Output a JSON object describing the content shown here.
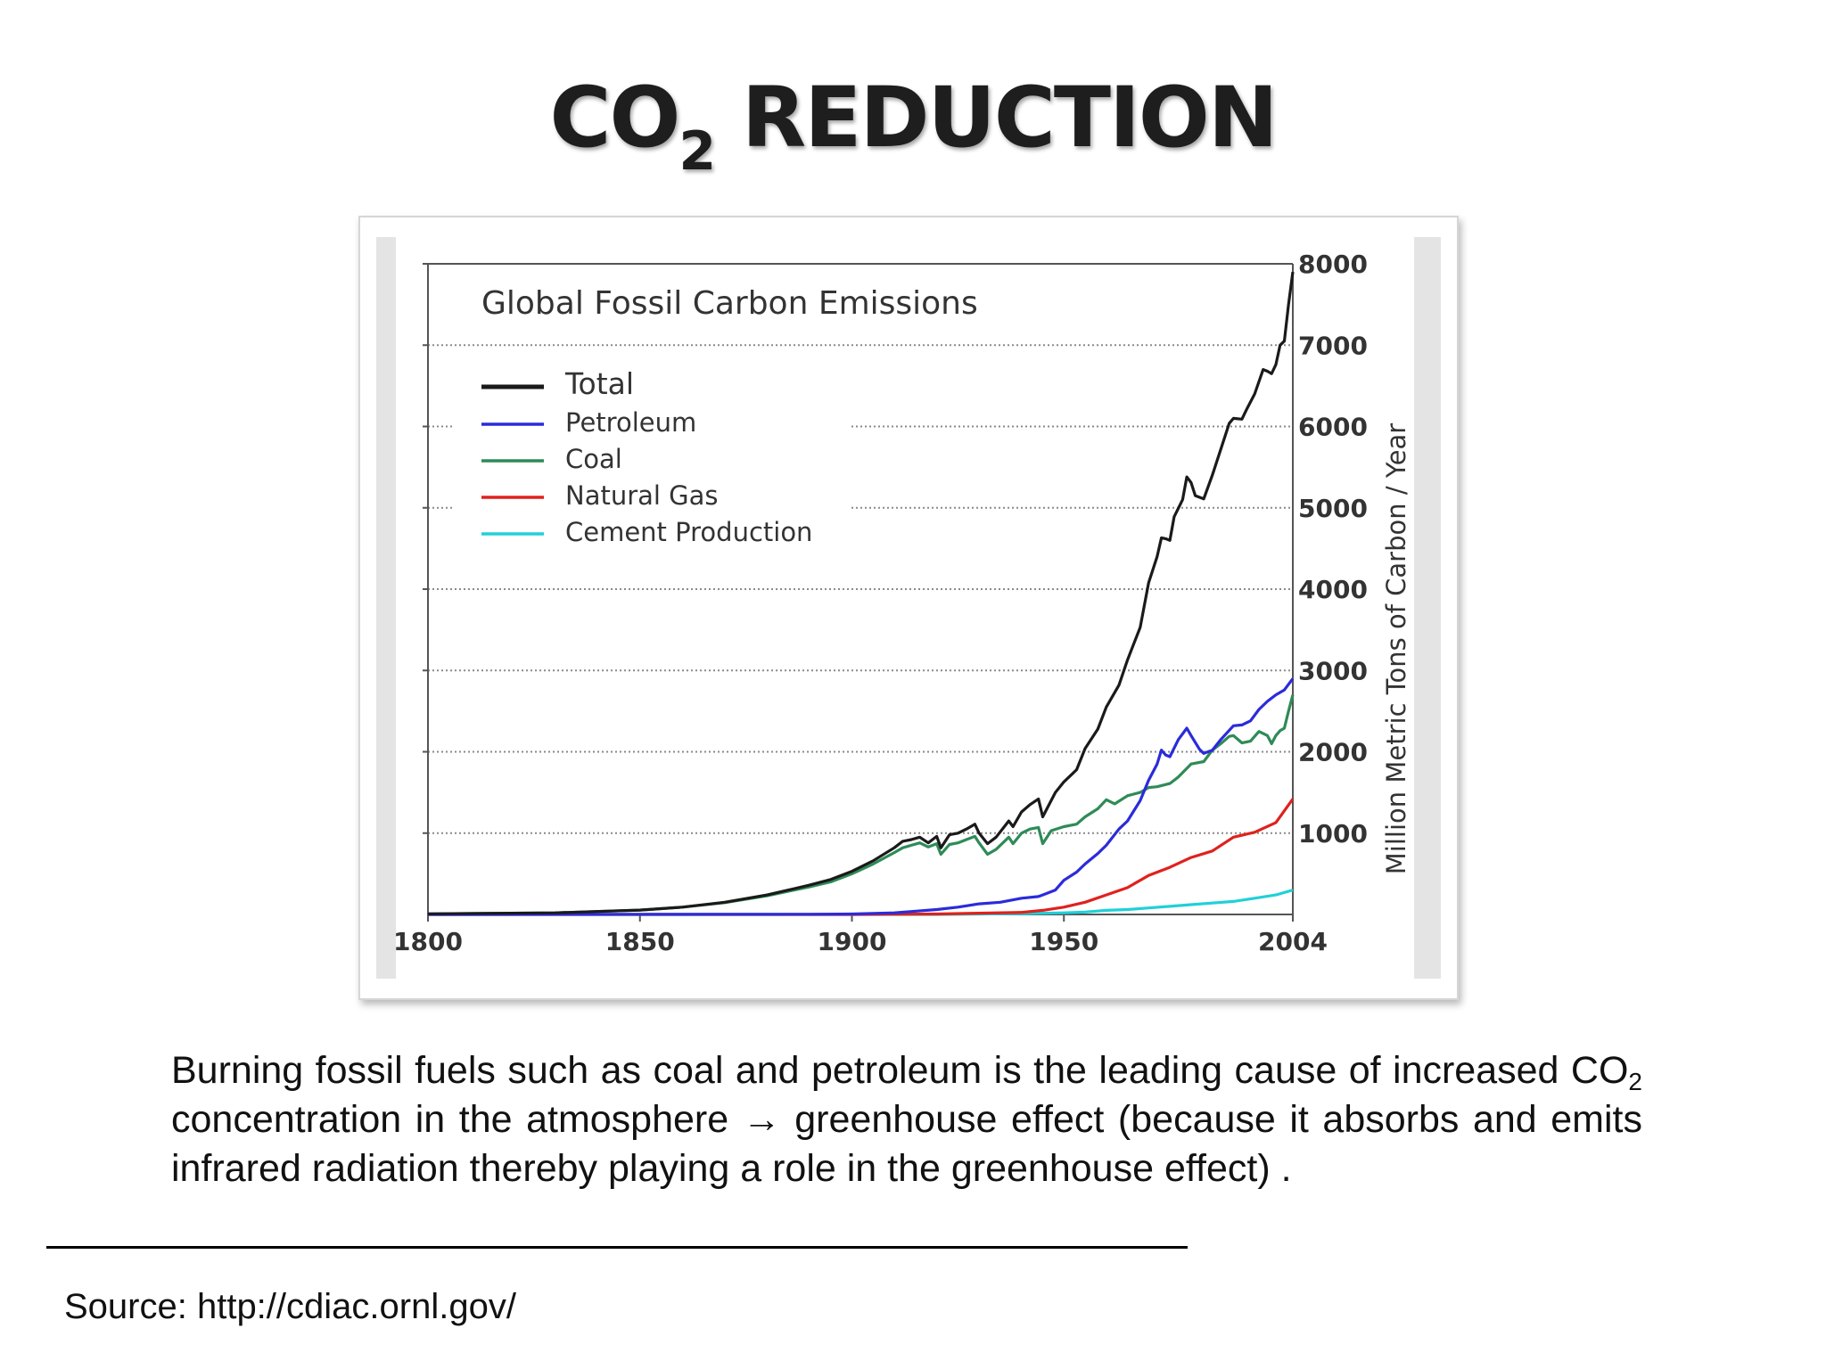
{
  "slide": {
    "title_main": "CO",
    "title_sub": "2",
    "title_rest": " REDUCTION",
    "caption_part1": "Burning fossil fuels such as coal and petroleum is the leading cause of increased CO",
    "caption_sub": "2",
    "caption_part2": " concentration in the atmosphere → greenhouse effect (because it absorbs and emits infrared radiation thereby playing a role in the greenhouse effect) .",
    "source": "Source: http://cdiac.ornl.gov/"
  },
  "chart_data": {
    "type": "line",
    "title": "Global Fossil Carbon Emissions",
    "ylabel": "Million Metric Tons of Carbon / Year",
    "xlabel": "",
    "xlim": [
      1800,
      2004
    ],
    "ylim": [
      0,
      8000
    ],
    "x_ticks": [
      1800,
      1850,
      1900,
      1950,
      2004
    ],
    "y_ticks": [
      1000,
      2000,
      3000,
      4000,
      5000,
      6000,
      7000,
      8000
    ],
    "y_axis_side": "right",
    "grid": "horizontal dotted",
    "legend_position": "top-left",
    "series": [
      {
        "name": "Total",
        "color": "#1a1a1a",
        "points": [
          [
            1800,
            8
          ],
          [
            1830,
            20
          ],
          [
            1850,
            54
          ],
          [
            1860,
            90
          ],
          [
            1870,
            150
          ],
          [
            1880,
            240
          ],
          [
            1890,
            360
          ],
          [
            1895,
            430
          ],
          [
            1900,
            530
          ],
          [
            1905,
            660
          ],
          [
            1910,
            820
          ],
          [
            1912,
            900
          ],
          [
            1914,
            920
          ],
          [
            1916,
            950
          ],
          [
            1918,
            880
          ],
          [
            1920,
            960
          ],
          [
            1921,
            820
          ],
          [
            1923,
            980
          ],
          [
            1925,
            1000
          ],
          [
            1927,
            1050
          ],
          [
            1929,
            1110
          ],
          [
            1930,
            1000
          ],
          [
            1932,
            870
          ],
          [
            1934,
            950
          ],
          [
            1937,
            1150
          ],
          [
            1938,
            1080
          ],
          [
            1940,
            1260
          ],
          [
            1942,
            1350
          ],
          [
            1944,
            1420
          ],
          [
            1945,
            1200
          ],
          [
            1946,
            1300
          ],
          [
            1948,
            1500
          ],
          [
            1950,
            1630
          ],
          [
            1953,
            1780
          ],
          [
            1955,
            2040
          ],
          [
            1958,
            2280
          ],
          [
            1960,
            2550
          ],
          [
            1963,
            2820
          ],
          [
            1965,
            3130
          ],
          [
            1968,
            3530
          ],
          [
            1970,
            4080
          ],
          [
            1972,
            4400
          ],
          [
            1973,
            4630
          ],
          [
            1974,
            4620
          ],
          [
            1975,
            4600
          ],
          [
            1976,
            4890
          ],
          [
            1978,
            5100
          ],
          [
            1979,
            5380
          ],
          [
            1980,
            5310
          ],
          [
            1981,
            5150
          ],
          [
            1983,
            5110
          ],
          [
            1985,
            5400
          ],
          [
            1987,
            5720
          ],
          [
            1989,
            6040
          ],
          [
            1990,
            6100
          ],
          [
            1992,
            6090
          ],
          [
            1993,
            6200
          ],
          [
            1995,
            6400
          ],
          [
            1997,
            6700
          ],
          [
            1998,
            6680
          ],
          [
            1999,
            6650
          ],
          [
            2000,
            6760
          ],
          [
            2001,
            7000
          ],
          [
            2002,
            7050
          ],
          [
            2003,
            7500
          ],
          [
            2004,
            7900
          ]
        ]
      },
      {
        "name": "Petroleum",
        "color": "#2b2bdb",
        "points": [
          [
            1800,
            0
          ],
          [
            1890,
            2
          ],
          [
            1900,
            5
          ],
          [
            1910,
            20
          ],
          [
            1920,
            60
          ],
          [
            1925,
            90
          ],
          [
            1930,
            130
          ],
          [
            1935,
            150
          ],
          [
            1940,
            200
          ],
          [
            1944,
            220
          ],
          [
            1945,
            240
          ],
          [
            1948,
            300
          ],
          [
            1950,
            420
          ],
          [
            1953,
            520
          ],
          [
            1955,
            620
          ],
          [
            1958,
            750
          ],
          [
            1960,
            850
          ],
          [
            1963,
            1050
          ],
          [
            1965,
            1150
          ],
          [
            1968,
            1400
          ],
          [
            1970,
            1650
          ],
          [
            1972,
            1850
          ],
          [
            1973,
            2020
          ],
          [
            1974,
            1960
          ],
          [
            1975,
            1940
          ],
          [
            1977,
            2150
          ],
          [
            1979,
            2290
          ],
          [
            1980,
            2200
          ],
          [
            1982,
            2030
          ],
          [
            1983,
            1980
          ],
          [
            1985,
            2020
          ],
          [
            1987,
            2150
          ],
          [
            1990,
            2320
          ],
          [
            1992,
            2330
          ],
          [
            1994,
            2380
          ],
          [
            1996,
            2520
          ],
          [
            1998,
            2620
          ],
          [
            2000,
            2700
          ],
          [
            2002,
            2760
          ],
          [
            2004,
            2900
          ]
        ]
      },
      {
        "name": "Coal",
        "color": "#2e8b57",
        "points": [
          [
            1800,
            8
          ],
          [
            1830,
            20
          ],
          [
            1850,
            54
          ],
          [
            1860,
            90
          ],
          [
            1870,
            145
          ],
          [
            1880,
            230
          ],
          [
            1890,
            340
          ],
          [
            1895,
            400
          ],
          [
            1900,
            500
          ],
          [
            1905,
            620
          ],
          [
            1910,
            760
          ],
          [
            1912,
            820
          ],
          [
            1914,
            850
          ],
          [
            1916,
            880
          ],
          [
            1918,
            830
          ],
          [
            1920,
            870
          ],
          [
            1921,
            740
          ],
          [
            1923,
            860
          ],
          [
            1925,
            880
          ],
          [
            1927,
            920
          ],
          [
            1929,
            960
          ],
          [
            1930,
            880
          ],
          [
            1932,
            740
          ],
          [
            1934,
            800
          ],
          [
            1937,
            950
          ],
          [
            1938,
            870
          ],
          [
            1940,
            1000
          ],
          [
            1942,
            1050
          ],
          [
            1944,
            1070
          ],
          [
            1945,
            870
          ],
          [
            1947,
            1030
          ],
          [
            1950,
            1080
          ],
          [
            1953,
            1110
          ],
          [
            1955,
            1200
          ],
          [
            1958,
            1300
          ],
          [
            1960,
            1410
          ],
          [
            1962,
            1360
          ],
          [
            1965,
            1460
          ],
          [
            1968,
            1500
          ],
          [
            1970,
            1560
          ],
          [
            1972,
            1570
          ],
          [
            1975,
            1610
          ],
          [
            1977,
            1690
          ],
          [
            1980,
            1850
          ],
          [
            1983,
            1880
          ],
          [
            1985,
            2020
          ],
          [
            1987,
            2100
          ],
          [
            1989,
            2190
          ],
          [
            1990,
            2200
          ],
          [
            1992,
            2110
          ],
          [
            1994,
            2130
          ],
          [
            1996,
            2250
          ],
          [
            1998,
            2200
          ],
          [
            1999,
            2100
          ],
          [
            2000,
            2200
          ],
          [
            2001,
            2260
          ],
          [
            2002,
            2290
          ],
          [
            2003,
            2500
          ],
          [
            2004,
            2700
          ]
        ]
      },
      {
        "name": "Natural Gas",
        "color": "#e0211d",
        "points": [
          [
            1800,
            0
          ],
          [
            1900,
            0
          ],
          [
            1920,
            5
          ],
          [
            1940,
            25
          ],
          [
            1945,
            50
          ],
          [
            1950,
            90
          ],
          [
            1955,
            150
          ],
          [
            1960,
            240
          ],
          [
            1965,
            330
          ],
          [
            1970,
            480
          ],
          [
            1975,
            580
          ],
          [
            1980,
            700
          ],
          [
            1985,
            780
          ],
          [
            1990,
            950
          ],
          [
            1995,
            1010
          ],
          [
            2000,
            1130
          ],
          [
            2004,
            1420
          ]
        ]
      },
      {
        "name": "Cement Production",
        "color": "#20d0d8",
        "points": [
          [
            1800,
            0
          ],
          [
            1920,
            0
          ],
          [
            1930,
            5
          ],
          [
            1940,
            10
          ],
          [
            1950,
            20
          ],
          [
            1955,
            30
          ],
          [
            1960,
            50
          ],
          [
            1965,
            60
          ],
          [
            1970,
            80
          ],
          [
            1975,
            100
          ],
          [
            1980,
            120
          ],
          [
            1985,
            140
          ],
          [
            1990,
            160
          ],
          [
            1995,
            200
          ],
          [
            2000,
            240
          ],
          [
            2004,
            300
          ]
        ]
      }
    ]
  }
}
